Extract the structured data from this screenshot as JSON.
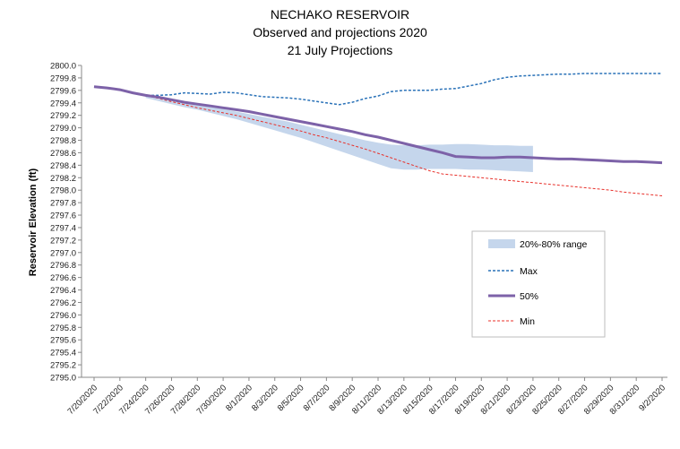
{
  "chart_data": {
    "type": "line",
    "title": [
      "NECHAKO RESERVOIR",
      "Observed and projections 2020",
      "21 July Projections"
    ],
    "ylabel": "Reservoir Elevation (ft)",
    "xlabel": "",
    "ylim": [
      2795.0,
      2800.0
    ],
    "ytick_step": 0.2,
    "x_ticks": [
      "7/20/2020",
      "7/22/2020",
      "7/24/2020",
      "7/26/2020",
      "7/28/2020",
      "7/30/2020",
      "8/1/2020",
      "8/3/2020",
      "8/5/2020",
      "8/7/2020",
      "8/9/2020",
      "8/11/2020",
      "8/13/2020",
      "8/15/2020",
      "8/17/2020",
      "8/19/2020",
      "8/21/2020",
      "8/23/2020",
      "8/25/2020",
      "8/27/2020",
      "8/29/2020",
      "8/31/2020",
      "9/2/2020"
    ],
    "grid": false,
    "legend_position": "center-right",
    "legend": [
      "20%-80% range",
      "Max",
      "50%",
      "Min"
    ],
    "series": [
      {
        "name": "20%-80% range",
        "style": "band",
        "color": "#c5d6ec",
        "start_day": 4,
        "lower": [
          2799.48,
          2799.43,
          2799.38,
          2799.33,
          2799.29,
          2799.24,
          2799.19,
          2799.14,
          2799.08,
          2799.02,
          2798.96,
          2798.9,
          2798.84,
          2798.77,
          2798.7,
          2798.63,
          2798.56,
          2798.49,
          2798.42,
          2798.35,
          2798.33,
          2798.33,
          2798.34,
          2798.34,
          2798.34,
          2798.33,
          2798.33,
          2798.32,
          2798.31,
          2798.3,
          2798.29
        ],
        "upper": [
          2799.5,
          2799.46,
          2799.42,
          2799.39,
          2799.36,
          2799.33,
          2799.3,
          2799.26,
          2799.22,
          2799.18,
          2799.14,
          2799.1,
          2799.05,
          2799.0,
          2798.95,
          2798.9,
          2798.85,
          2798.8,
          2798.76,
          2798.73,
          2798.72,
          2798.72,
          2798.73,
          2798.73,
          2798.74,
          2798.74,
          2798.73,
          2798.72,
          2798.72,
          2798.71,
          2798.71
        ]
      },
      {
        "name": "Max",
        "style": "dashed",
        "color": "#2a72b8",
        "values": [
          2799.66,
          2799.64,
          2799.61,
          2799.56,
          2799.52,
          2799.52,
          2799.53,
          2799.56,
          2799.55,
          2799.54,
          2799.57,
          2799.56,
          2799.53,
          2799.5,
          2799.49,
          2799.48,
          2799.46,
          2799.43,
          2799.4,
          2799.37,
          2799.41,
          2799.47,
          2799.51,
          2799.58,
          2799.6,
          2799.6,
          2799.6,
          2799.62,
          2799.63,
          2799.67,
          2799.71,
          2799.77,
          2799.81,
          2799.83,
          2799.84,
          2799.85,
          2799.86,
          2799.86,
          2799.87,
          2799.87,
          2799.87,
          2799.87,
          2799.87,
          2799.87,
          2799.87
        ]
      },
      {
        "name": "50%",
        "style": "solid",
        "color": "#7d62a8",
        "values": [
          2799.66,
          2799.64,
          2799.61,
          2799.56,
          2799.52,
          2799.49,
          2799.45,
          2799.41,
          2799.38,
          2799.35,
          2799.32,
          2799.29,
          2799.26,
          2799.22,
          2799.18,
          2799.14,
          2799.1,
          2799.06,
          2799.02,
          2798.98,
          2798.94,
          2798.89,
          2798.85,
          2798.8,
          2798.75,
          2798.7,
          2798.65,
          2798.6,
          2798.54,
          2798.53,
          2798.52,
          2798.52,
          2798.53,
          2798.53,
          2798.52,
          2798.51,
          2798.5,
          2798.5,
          2798.49,
          2798.48,
          2798.47,
          2798.46,
          2798.46,
          2798.45,
          2798.44
        ]
      },
      {
        "name": "Min",
        "style": "dashed",
        "color": "#e8302a",
        "values": [
          2799.66,
          2799.64,
          2799.61,
          2799.56,
          2799.52,
          2799.47,
          2799.42,
          2799.37,
          2799.32,
          2799.28,
          2799.24,
          2799.2,
          2799.15,
          2799.1,
          2799.05,
          2799.0,
          2798.95,
          2798.89,
          2798.84,
          2798.78,
          2798.72,
          2798.66,
          2798.59,
          2798.52,
          2798.45,
          2798.38,
          2798.31,
          2798.26,
          2798.24,
          2798.22,
          2798.2,
          2798.18,
          2798.16,
          2798.14,
          2798.12,
          2798.1,
          2798.08,
          2798.06,
          2798.04,
          2798.02,
          2798.0,
          2797.97,
          2797.95,
          2797.93,
          2797.91
        ]
      }
    ]
  }
}
